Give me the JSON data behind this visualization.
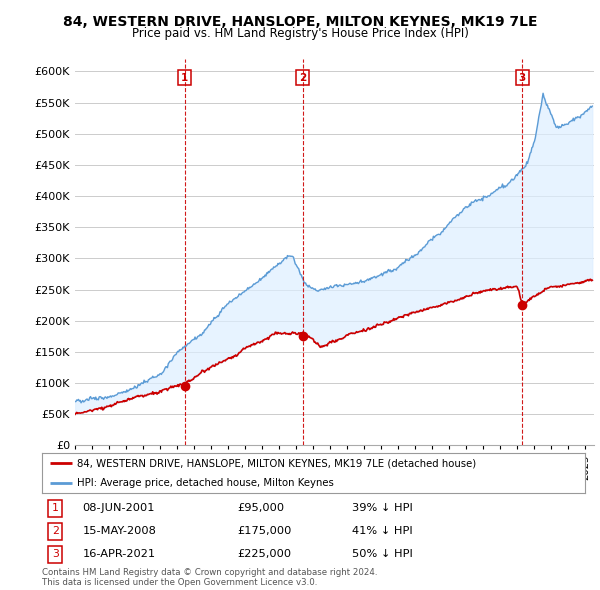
{
  "title": "84, WESTERN DRIVE, HANSLOPE, MILTON KEYNES, MK19 7LE",
  "subtitle": "Price paid vs. HM Land Registry's House Price Index (HPI)",
  "ylabel_ticks": [
    "£0",
    "£50K",
    "£100K",
    "£150K",
    "£200K",
    "£250K",
    "£300K",
    "£350K",
    "£400K",
    "£450K",
    "£500K",
    "£550K",
    "£600K"
  ],
  "ytick_values": [
    0,
    50000,
    100000,
    150000,
    200000,
    250000,
    300000,
    350000,
    400000,
    450000,
    500000,
    550000,
    600000
  ],
  "ylim": [
    0,
    620000
  ],
  "xlim_start": 1995.0,
  "xlim_end": 2025.5,
  "sales": [
    {
      "date": 2001.44,
      "price": 95000,
      "label": "1"
    },
    {
      "date": 2008.37,
      "price": 175000,
      "label": "2"
    },
    {
      "date": 2021.29,
      "price": 225000,
      "label": "3"
    }
  ],
  "hpi_color": "#5b9bd5",
  "hpi_fill_color": "#ddeeff",
  "sale_color": "#cc0000",
  "legend_sale_label": "84, WESTERN DRIVE, HANSLOPE, MILTON KEYNES, MK19 7LE (detached house)",
  "legend_hpi_label": "HPI: Average price, detached house, Milton Keynes",
  "table_entries": [
    {
      "num": "1",
      "date": "08-JUN-2001",
      "price": "£95,000",
      "hpi": "39% ↓ HPI"
    },
    {
      "num": "2",
      "date": "15-MAY-2008",
      "price": "£175,000",
      "hpi": "41% ↓ HPI"
    },
    {
      "num": "3",
      "date": "16-APR-2021",
      "price": "£225,000",
      "hpi": "50% ↓ HPI"
    }
  ],
  "footnote": "Contains HM Land Registry data © Crown copyright and database right 2024.\nThis data is licensed under the Open Government Licence v3.0.",
  "background_color": "#ffffff",
  "grid_color": "#cccccc"
}
